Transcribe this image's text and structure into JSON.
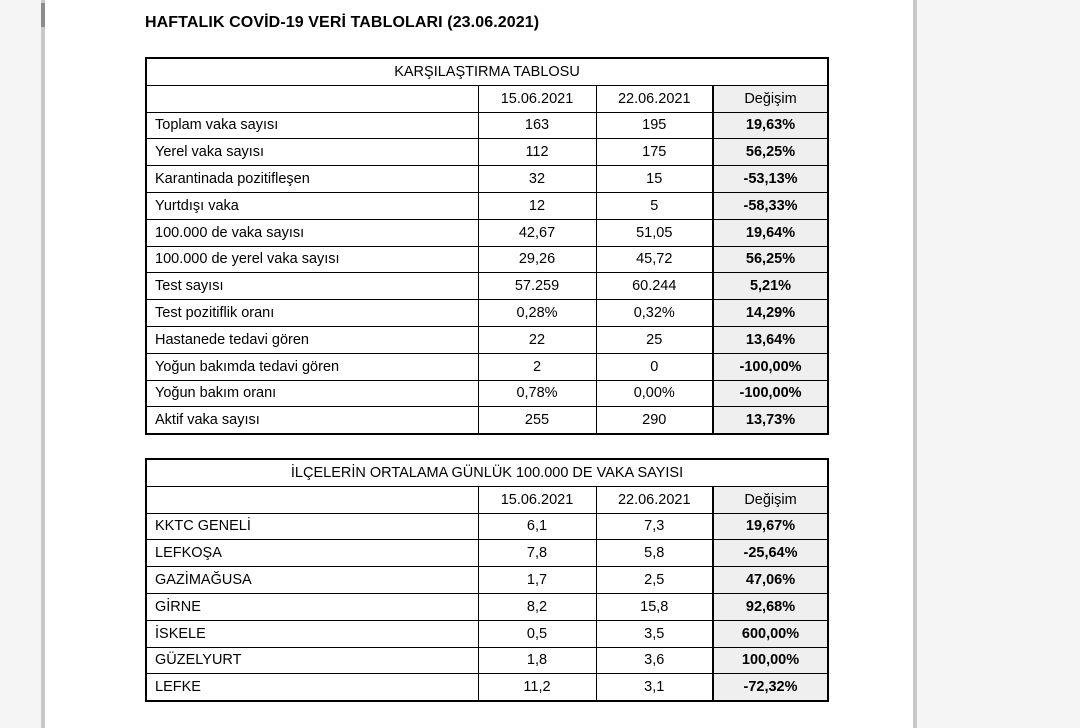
{
  "page": {
    "title": "HAFTALIK COVİD-19 VERİ TABLOLARI (23.06.2021)"
  },
  "colors": {
    "change_column_bg": "#efefef",
    "table_border": "#000000",
    "gutter_bg": "#f5f5f6",
    "divider": "#c6c8c9",
    "scroll_thumb": "#8a8c8e"
  },
  "comparison_table": {
    "title": "KARŞILAŞTIRMA TABLOSU",
    "col_headers": [
      "15.06.2021",
      "22.06.2021",
      "Değişim"
    ],
    "rows": [
      {
        "label": "Toplam vaka sayısı",
        "week1": "163",
        "week2": "195",
        "change": "19,63%"
      },
      {
        "label": "Yerel vaka sayısı",
        "week1": "112",
        "week2": "175",
        "change": "56,25%"
      },
      {
        "label": "Karantinada pozitifleşen",
        "week1": "32",
        "week2": "15",
        "change": "-53,13%"
      },
      {
        "label": "Yurtdışı vaka",
        "week1": "12",
        "week2": "5",
        "change": "-58,33%"
      },
      {
        "label": "100.000 de vaka sayısı",
        "week1": "42,67",
        "week2": "51,05",
        "change": "19,64%"
      },
      {
        "label": "100.000 de yerel vaka sayısı",
        "week1": "29,26",
        "week2": "45,72",
        "change": "56,25%"
      },
      {
        "label": "Test sayısı",
        "week1": "57.259",
        "week2": "60.244",
        "change": "5,21%"
      },
      {
        "label": "Test pozitiflik oranı",
        "week1": "0,28%",
        "week2": "0,32%",
        "change": "14,29%"
      },
      {
        "label": "Hastanede tedavi gören",
        "week1": "22",
        "week2": "25",
        "change": "13,64%"
      },
      {
        "label": "Yoğun bakımda tedavi gören",
        "week1": "2",
        "week2": "0",
        "change": "-100,00%"
      },
      {
        "label": "Yoğun bakım oranı",
        "week1": "0,78%",
        "week2": "0,00%",
        "change": "-100,00%"
      },
      {
        "label": "Aktif vaka sayısı",
        "week1": "255",
        "week2": "290",
        "change": "13,73%"
      }
    ]
  },
  "district_table": {
    "title": "İLÇELERİN ORTALAMA GÜNLÜK 100.000 DE VAKA SAYISI",
    "col_headers": [
      "15.06.2021",
      "22.06.2021",
      "Değişim"
    ],
    "rows": [
      {
        "label": "KKTC GENELİ",
        "week1": "6,1",
        "week2": "7,3",
        "change": "19,67%"
      },
      {
        "label": "LEFKOŞA",
        "week1": "7,8",
        "week2": "5,8",
        "change": "-25,64%"
      },
      {
        "label": "GAZİMAĞUSA",
        "week1": "1,7",
        "week2": "2,5",
        "change": "47,06%"
      },
      {
        "label": "GİRNE",
        "week1": "8,2",
        "week2": "15,8",
        "change": "92,68%"
      },
      {
        "label": "İSKELE",
        "week1": "0,5",
        "week2": "3,5",
        "change": "600,00%"
      },
      {
        "label": "GÜZELYURT",
        "week1": "1,8",
        "week2": "3,6",
        "change": "100,00%"
      },
      {
        "label": "LEFKE",
        "week1": "11,2",
        "week2": "3,1",
        "change": "-72,32%"
      }
    ]
  }
}
